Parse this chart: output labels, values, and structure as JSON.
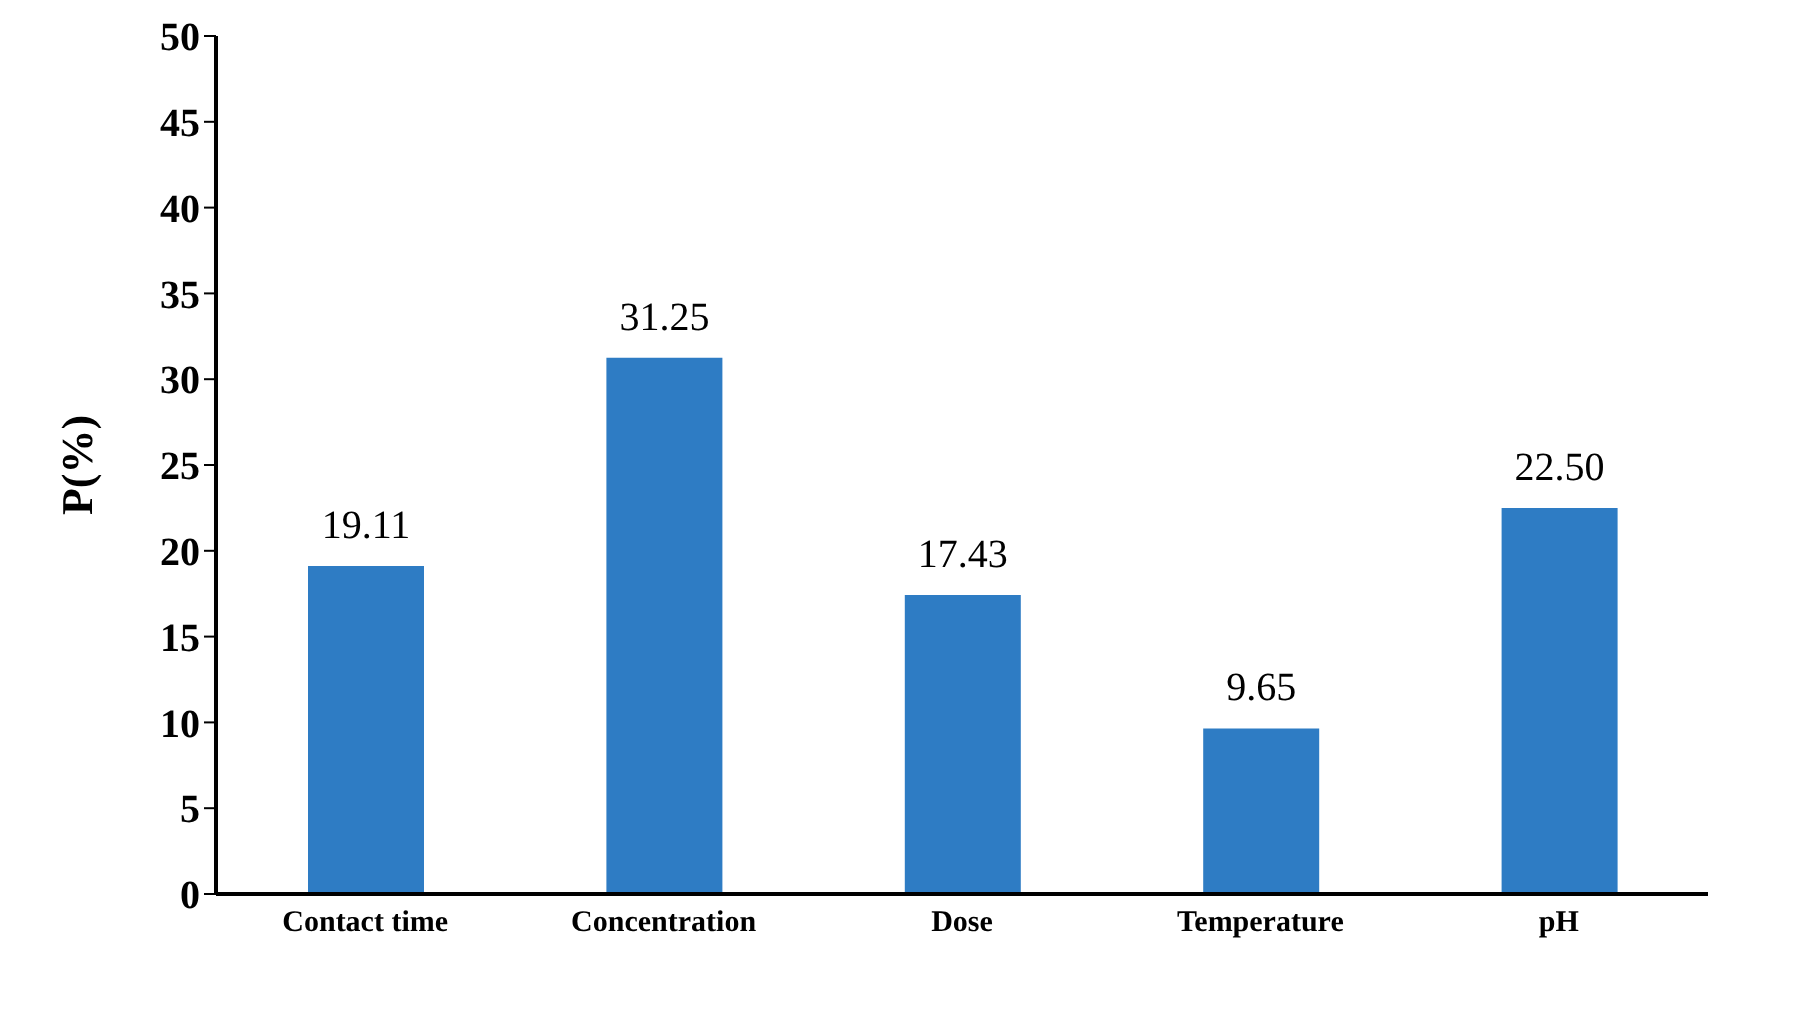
{
  "chart_data": {
    "type": "bar",
    "ylabel": "P(%)",
    "categories": [
      "Contact time",
      "Concentration",
      "Dose",
      "Temperature",
      "pH"
    ],
    "values": [
      19.11,
      31.25,
      17.43,
      9.65,
      22.5
    ],
    "value_labels": [
      "19.11",
      "31.25",
      "17.43",
      "9.65",
      "22.50"
    ],
    "color": "#2e7cc4",
    "ylim": [
      0,
      50
    ],
    "yticks": [
      0,
      5,
      10,
      15,
      20,
      25,
      30,
      35,
      40,
      45,
      50
    ],
    "grid": false
  }
}
